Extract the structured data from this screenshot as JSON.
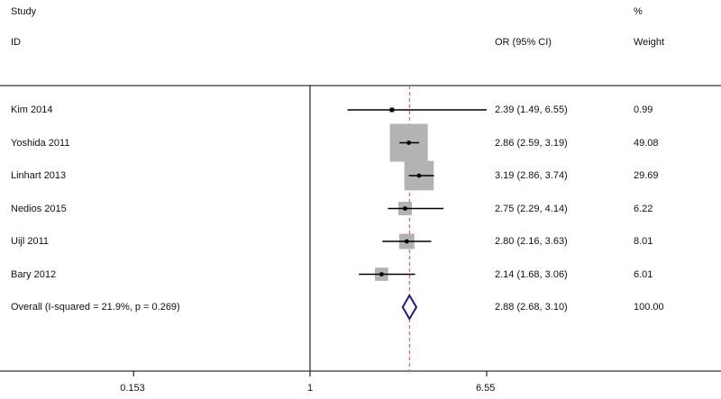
{
  "headers": {
    "study": "Study",
    "id": "ID",
    "or_ci": "OR (95% CI)",
    "percent": "%",
    "weight": "Weight"
  },
  "chart_data": {
    "type": "forest",
    "x_scale": "log",
    "x_ticks": [
      "0.153",
      "1",
      "6.55"
    ],
    "x_range": [
      0.153,
      6.55
    ],
    "reference_line": 1,
    "overall_line": 2.88,
    "colors": {
      "box": "#b3b3b3",
      "ci_line": "#000000",
      "reference": "#000000",
      "overall_line": "#c0506b",
      "diamond": "#1f1f7a"
    },
    "studies": [
      {
        "name": "Kim 2014",
        "or": 2.39,
        "lo": 1.49,
        "hi": 6.55,
        "or_label": "2.39 (1.49, 6.55)",
        "weight": 0.99,
        "weight_label": "0.99"
      },
      {
        "name": "Yoshida 2011",
        "or": 2.86,
        "lo": 2.59,
        "hi": 3.19,
        "or_label": "2.86 (2.59, 3.19)",
        "weight": 49.08,
        "weight_label": "49.08"
      },
      {
        "name": "Linhart 2013",
        "or": 3.19,
        "lo": 2.86,
        "hi": 3.74,
        "or_label": "3.19 (2.86, 3.74)",
        "weight": 29.69,
        "weight_label": "29.69"
      },
      {
        "name": "Nedios 2015",
        "or": 2.75,
        "lo": 2.29,
        "hi": 4.14,
        "or_label": "2.75 (2.29, 4.14)",
        "weight": 6.22,
        "weight_label": "6.22"
      },
      {
        "name": "Uijl 2011",
        "or": 2.8,
        "lo": 2.16,
        "hi": 3.63,
        "or_label": "2.80 (2.16, 3.63)",
        "weight": 8.01,
        "weight_label": "8.01"
      },
      {
        "name": "Bary 2012",
        "or": 2.14,
        "lo": 1.68,
        "hi": 3.06,
        "or_label": "2.14 (1.68, 3.06)",
        "weight": 6.01,
        "weight_label": "6.01"
      }
    ],
    "overall": {
      "name": "Overall  (I-squared = 21.9%, p = 0.269)",
      "or": 2.88,
      "lo": 2.68,
      "hi": 3.1,
      "or_label": "2.88 (2.68, 3.10)",
      "weight_label": "100.00"
    }
  }
}
